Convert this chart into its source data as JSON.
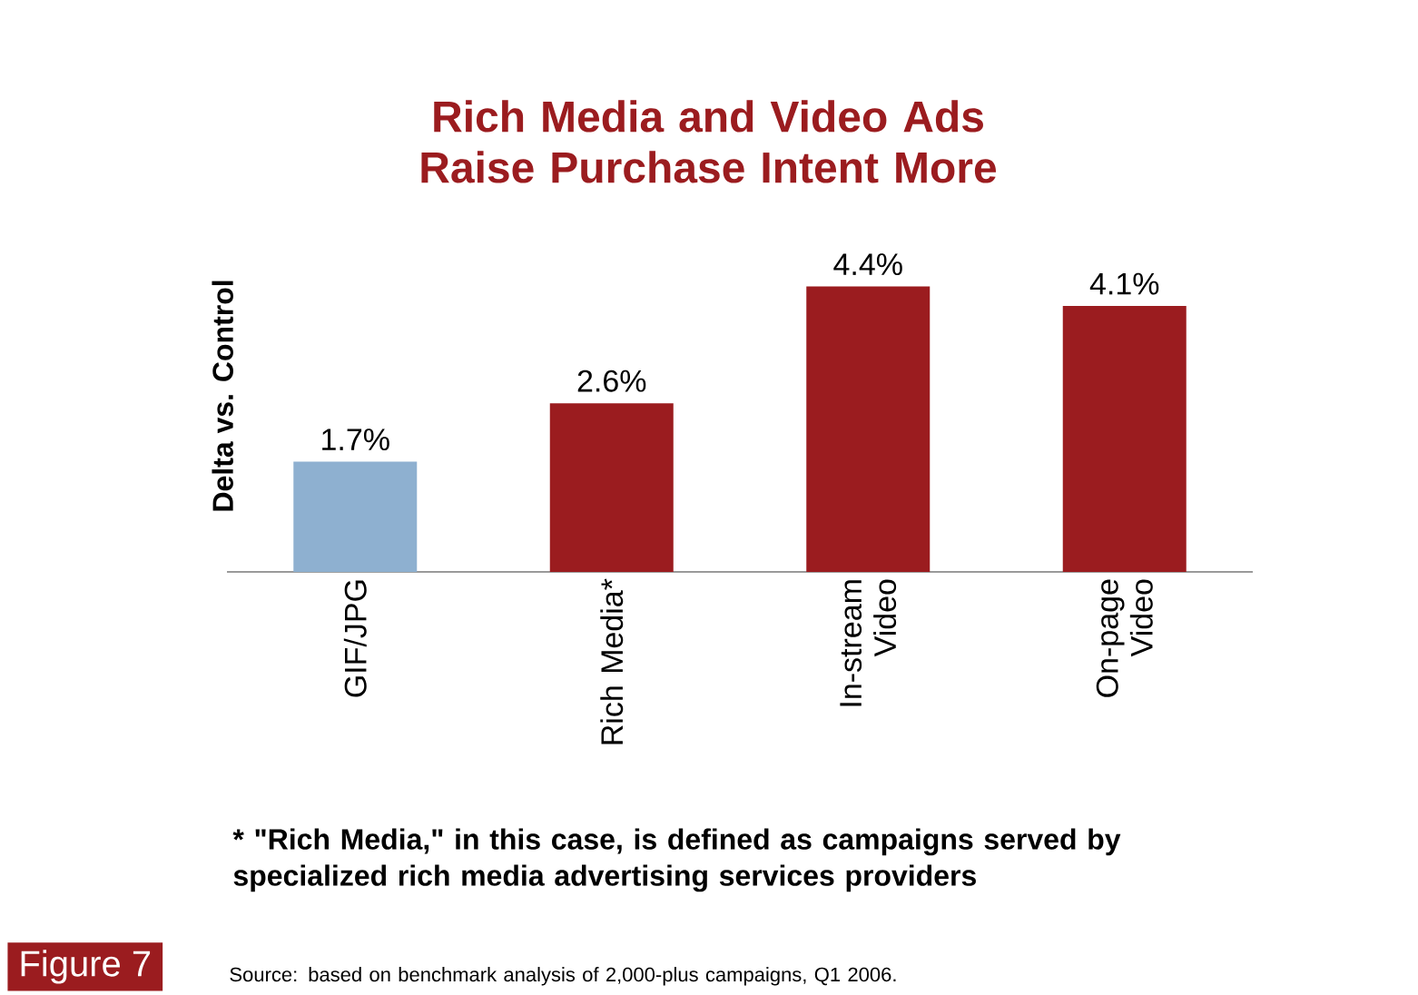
{
  "chart_data": {
    "type": "bar",
    "title": "Rich Media and Video Ads Raise Purchase Intent More",
    "ylabel": "Delta vs. Control",
    "categories": [
      "GIF/JPG",
      "Rich Media*",
      "In-stream Video",
      "On-page Video"
    ],
    "values": [
      1.7,
      2.6,
      4.4,
      4.1
    ],
    "value_labels": [
      "1.7%",
      "2.6%",
      "4.4%",
      "4.1%"
    ],
    "colors": [
      "#8eb0d0",
      "#9b1c1f",
      "#9b1c1f",
      "#9b1c1f"
    ],
    "annotations": [
      "* \"Rich Media,\" in this case, is defined as campaigns served by specialized rich media advertising services providers",
      "Figure 7",
      "Source: based on benchmark analysis of 2,000-plus campaigns, Q1 2006."
    ]
  }
}
